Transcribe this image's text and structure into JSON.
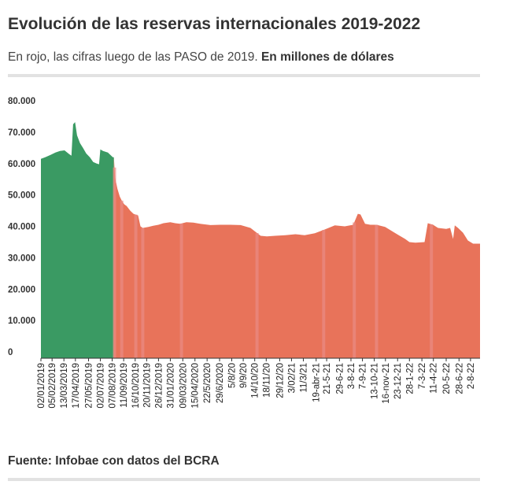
{
  "header": {
    "title": "Evolución de las reservas internacionales 2019-2022",
    "subtitle_main": "En rojo, las cifras luego de las PASO de 2019. ",
    "subtitle_unit": "En millones de dólares"
  },
  "footer": {
    "source_label": "Fuente: Infobae con datos del BCRA"
  },
  "colors": {
    "pre_paso": "#3a9a63",
    "post_paso": "#e8735a",
    "post_paso_light": "#ea8c84",
    "rule": "#e2e2e2"
  },
  "chart_data": {
    "type": "area",
    "title": "Evolución de las reservas internacionales 2019-2022",
    "ylabel": "En millones de dólares",
    "ylim": [
      0,
      80000
    ],
    "yticks": [
      0,
      10000,
      20000,
      30000,
      40000,
      50000,
      60000,
      70000,
      80000
    ],
    "ytick_labels": [
      "0",
      "10.000",
      "20.000",
      "30.000",
      "40.000",
      "50.000",
      "60.000",
      "70.000",
      "80.000"
    ],
    "x_range": [
      "2019-01-02",
      "2022-08-31"
    ],
    "split_date": "2019-08-12",
    "grid": false,
    "legend": "none",
    "xtick_labels": [
      {
        "label": "02/01/2019",
        "date": "2019-01-02"
      },
      {
        "label": "05/02/2019",
        "date": "2019-02-05"
      },
      {
        "label": "13/03/2019",
        "date": "2019-03-13"
      },
      {
        "label": "17/04/2019",
        "date": "2019-04-17"
      },
      {
        "label": "27/05/2019",
        "date": "2019-05-27"
      },
      {
        "label": "02/07/2019",
        "date": "2019-07-02"
      },
      {
        "label": "07/08/2019",
        "date": "2019-08-07"
      },
      {
        "label": "11/09/2019",
        "date": "2019-09-11"
      },
      {
        "label": "16/10/2019",
        "date": "2019-10-16"
      },
      {
        "label": "20/11/2019",
        "date": "2019-11-20"
      },
      {
        "label": "26/12/2019",
        "date": "2019-12-26"
      },
      {
        "label": "31/01/2020",
        "date": "2020-01-31"
      },
      {
        "label": "09/03/2020",
        "date": "2020-03-09"
      },
      {
        "label": "15/04/2020",
        "date": "2020-04-15"
      },
      {
        "label": "22/5/2020",
        "date": "2020-05-22"
      },
      {
        "label": "29/6/2020",
        "date": "2020-06-29"
      },
      {
        "label": "5/8/20",
        "date": "2020-08-05"
      },
      {
        "label": "9/9/20",
        "date": "2020-09-09"
      },
      {
        "label": "14/10/20",
        "date": "2020-10-14"
      },
      {
        "label": "18/11/20",
        "date": "2020-11-18"
      },
      {
        "label": "29/12/20",
        "date": "2020-12-29"
      },
      {
        "label": "3/02/21",
        "date": "2021-02-03"
      },
      {
        "label": "11/3/21",
        "date": "2021-03-11"
      },
      {
        "label": "19-abr-21",
        "date": "2021-04-19"
      },
      {
        "label": "21-5-21",
        "date": "2021-05-21"
      },
      {
        "label": "29-6-21",
        "date": "2021-06-29"
      },
      {
        "label": "3-8-21",
        "date": "2021-08-03"
      },
      {
        "label": "7-9-21",
        "date": "2021-09-07"
      },
      {
        "label": "13-10-21",
        "date": "2021-10-13"
      },
      {
        "label": "16-nov-21",
        "date": "2021-11-16"
      },
      {
        "label": "23-12-21",
        "date": "2021-12-23"
      },
      {
        "label": "28-1-22",
        "date": "2022-01-28"
      },
      {
        "label": "7-3-22",
        "date": "2022-03-07"
      },
      {
        "label": "11-4-22",
        "date": "2022-04-11"
      },
      {
        "label": "20-5-22",
        "date": "2022-05-20"
      },
      {
        "label": "28-6-22",
        "date": "2022-06-28"
      },
      {
        "label": "2-8-22",
        "date": "2022-08-02"
      }
    ],
    "series": [
      {
        "color": "#3a9a63",
        "points": [
          [
            "2019-01-02",
            63500
          ],
          [
            "2019-01-15",
            64000
          ],
          [
            "2019-02-01",
            64800
          ],
          [
            "2019-02-15",
            65500
          ],
          [
            "2019-03-01",
            66000
          ],
          [
            "2019-03-15",
            66200
          ],
          [
            "2019-03-29",
            65000
          ],
          [
            "2019-04-05",
            64500
          ],
          [
            "2019-04-10",
            74500
          ],
          [
            "2019-04-16",
            75200
          ],
          [
            "2019-04-22",
            71000
          ],
          [
            "2019-05-01",
            68500
          ],
          [
            "2019-05-10",
            67000
          ],
          [
            "2019-05-20",
            65200
          ],
          [
            "2019-05-31",
            64000
          ],
          [
            "2019-06-10",
            62500
          ],
          [
            "2019-06-21",
            62000
          ],
          [
            "2019-06-28",
            61800
          ],
          [
            "2019-07-02",
            66500
          ],
          [
            "2019-07-10",
            66000
          ],
          [
            "2019-07-25",
            65500
          ],
          [
            "2019-08-09",
            64000
          ]
        ]
      },
      {
        "color": "#e8735a",
        "points": [
          [
            "2019-08-12",
            64000
          ],
          [
            "2019-08-16",
            57500
          ],
          [
            "2019-08-23",
            54000
          ],
          [
            "2019-08-30",
            51500
          ],
          [
            "2019-09-06",
            50000
          ],
          [
            "2019-09-13",
            49000
          ],
          [
            "2019-09-20",
            48500
          ],
          [
            "2019-10-01",
            47000
          ],
          [
            "2019-10-11",
            46000
          ],
          [
            "2019-10-25",
            45500
          ],
          [
            "2019-11-01",
            42000
          ],
          [
            "2019-11-08",
            41500
          ],
          [
            "2019-11-25",
            41800
          ],
          [
            "2019-12-10",
            42200
          ],
          [
            "2019-12-26",
            42500
          ],
          [
            "2020-01-10",
            43000
          ],
          [
            "2020-01-31",
            43300
          ],
          [
            "2020-02-15",
            43000
          ],
          [
            "2020-03-01",
            42800
          ],
          [
            "2020-03-20",
            43300
          ],
          [
            "2020-04-10",
            43200
          ],
          [
            "2020-05-01",
            42800
          ],
          [
            "2020-06-01",
            42400
          ],
          [
            "2020-07-01",
            42500
          ],
          [
            "2020-08-01",
            42500
          ],
          [
            "2020-09-01",
            42400
          ],
          [
            "2020-10-01",
            41500
          ],
          [
            "2020-11-01",
            39000
          ],
          [
            "2020-11-20",
            38800
          ],
          [
            "2020-12-15",
            39000
          ],
          [
            "2021-01-15",
            39200
          ],
          [
            "2021-02-15",
            39500
          ],
          [
            "2021-03-15",
            39200
          ],
          [
            "2021-04-15",
            39800
          ],
          [
            "2021-05-15",
            41000
          ],
          [
            "2021-06-15",
            42300
          ],
          [
            "2021-07-15",
            42000
          ],
          [
            "2021-08-10",
            42500
          ],
          [
            "2021-08-24",
            46000
          ],
          [
            "2021-09-01",
            45800
          ],
          [
            "2021-09-15",
            42800
          ],
          [
            "2021-10-01",
            42500
          ],
          [
            "2021-10-20",
            42500
          ],
          [
            "2021-11-15",
            41800
          ],
          [
            "2021-12-15",
            39900
          ],
          [
            "2022-01-15",
            38000
          ],
          [
            "2022-01-28",
            37000
          ],
          [
            "2022-02-15",
            36800
          ],
          [
            "2022-03-01",
            36900
          ],
          [
            "2022-03-15",
            37000
          ],
          [
            "2022-03-25",
            43000
          ],
          [
            "2022-04-10",
            42500
          ],
          [
            "2022-04-25",
            41500
          ],
          [
            "2022-05-20",
            41200
          ],
          [
            "2022-06-01",
            41500
          ],
          [
            "2022-06-10",
            38000
          ],
          [
            "2022-06-15",
            42300
          ],
          [
            "2022-06-25",
            41500
          ],
          [
            "2022-07-10",
            40000
          ],
          [
            "2022-07-25",
            37500
          ],
          [
            "2022-08-10",
            36500
          ],
          [
            "2022-08-31",
            36500
          ]
        ]
      }
    ],
    "highlight_bands": [
      {
        "date": "2019-08-14"
      },
      {
        "date": "2019-09-05"
      },
      {
        "date": "2019-10-18"
      },
      {
        "date": "2019-11-08"
      },
      {
        "date": "2020-03-05"
      },
      {
        "date": "2020-10-21"
      },
      {
        "date": "2021-05-12"
      },
      {
        "date": "2021-08-13"
      },
      {
        "date": "2021-10-20"
      },
      {
        "date": "2022-04-05"
      }
    ]
  }
}
